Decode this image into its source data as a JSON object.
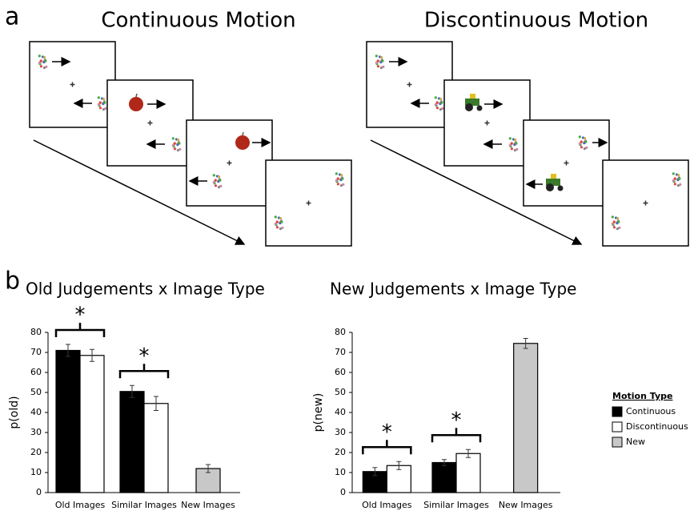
{
  "panel_labels": [
    "a",
    "b"
  ],
  "diagrams": [
    {
      "title": "Continuous Motion"
    },
    {
      "title": "Discontinuous Motion"
    }
  ],
  "chart_data": [
    {
      "type": "bar",
      "title": "Old Judgements x Image Type",
      "y_label": "p(old)",
      "categories": [
        "Old Images",
        "Similar Images",
        "New Images"
      ],
      "series": [
        {
          "name": "Continuous",
          "color": "#000000",
          "values": [
            71,
            50.5,
            null
          ],
          "errors": [
            3,
            3,
            null
          ]
        },
        {
          "name": "Discontinuous",
          "color": "#ffffff",
          "values": [
            68.5,
            44.5,
            null
          ],
          "errors": [
            3,
            3.5,
            null
          ]
        },
        {
          "name": "New",
          "color": "#c8c8c8",
          "values": [
            null,
            null,
            12
          ],
          "errors": [
            null,
            null,
            2
          ]
        }
      ],
      "significance_labels": [
        "*",
        "*",
        null
      ],
      "ylim": [
        0,
        80
      ],
      "yticks": [
        0,
        10,
        20,
        30,
        40,
        50,
        60,
        70,
        80
      ],
      "legend": false
    },
    {
      "type": "bar",
      "title": "New Judgements x Image Type",
      "y_label": "p(new)",
      "categories": [
        "Old Images",
        "Similar Images",
        "New Images"
      ],
      "series": [
        {
          "name": "Continuous",
          "color": "#000000",
          "values": [
            10.5,
            15,
            null
          ],
          "errors": [
            2,
            1.5,
            null
          ]
        },
        {
          "name": "Discontinuous",
          "color": "#ffffff",
          "values": [
            13.5,
            19.5,
            null
          ],
          "errors": [
            2,
            2,
            null
          ]
        },
        {
          "name": "New",
          "color": "#c8c8c8",
          "values": [
            null,
            null,
            74.5
          ],
          "errors": [
            null,
            null,
            2.5
          ]
        }
      ],
      "significance_labels": [
        "*",
        "*",
        null
      ],
      "ylim": [
        0,
        80
      ],
      "yticks": [
        0,
        10,
        20,
        30,
        40,
        50,
        60,
        70,
        80
      ],
      "legend": true,
      "legend_title": "Motion Type"
    }
  ]
}
